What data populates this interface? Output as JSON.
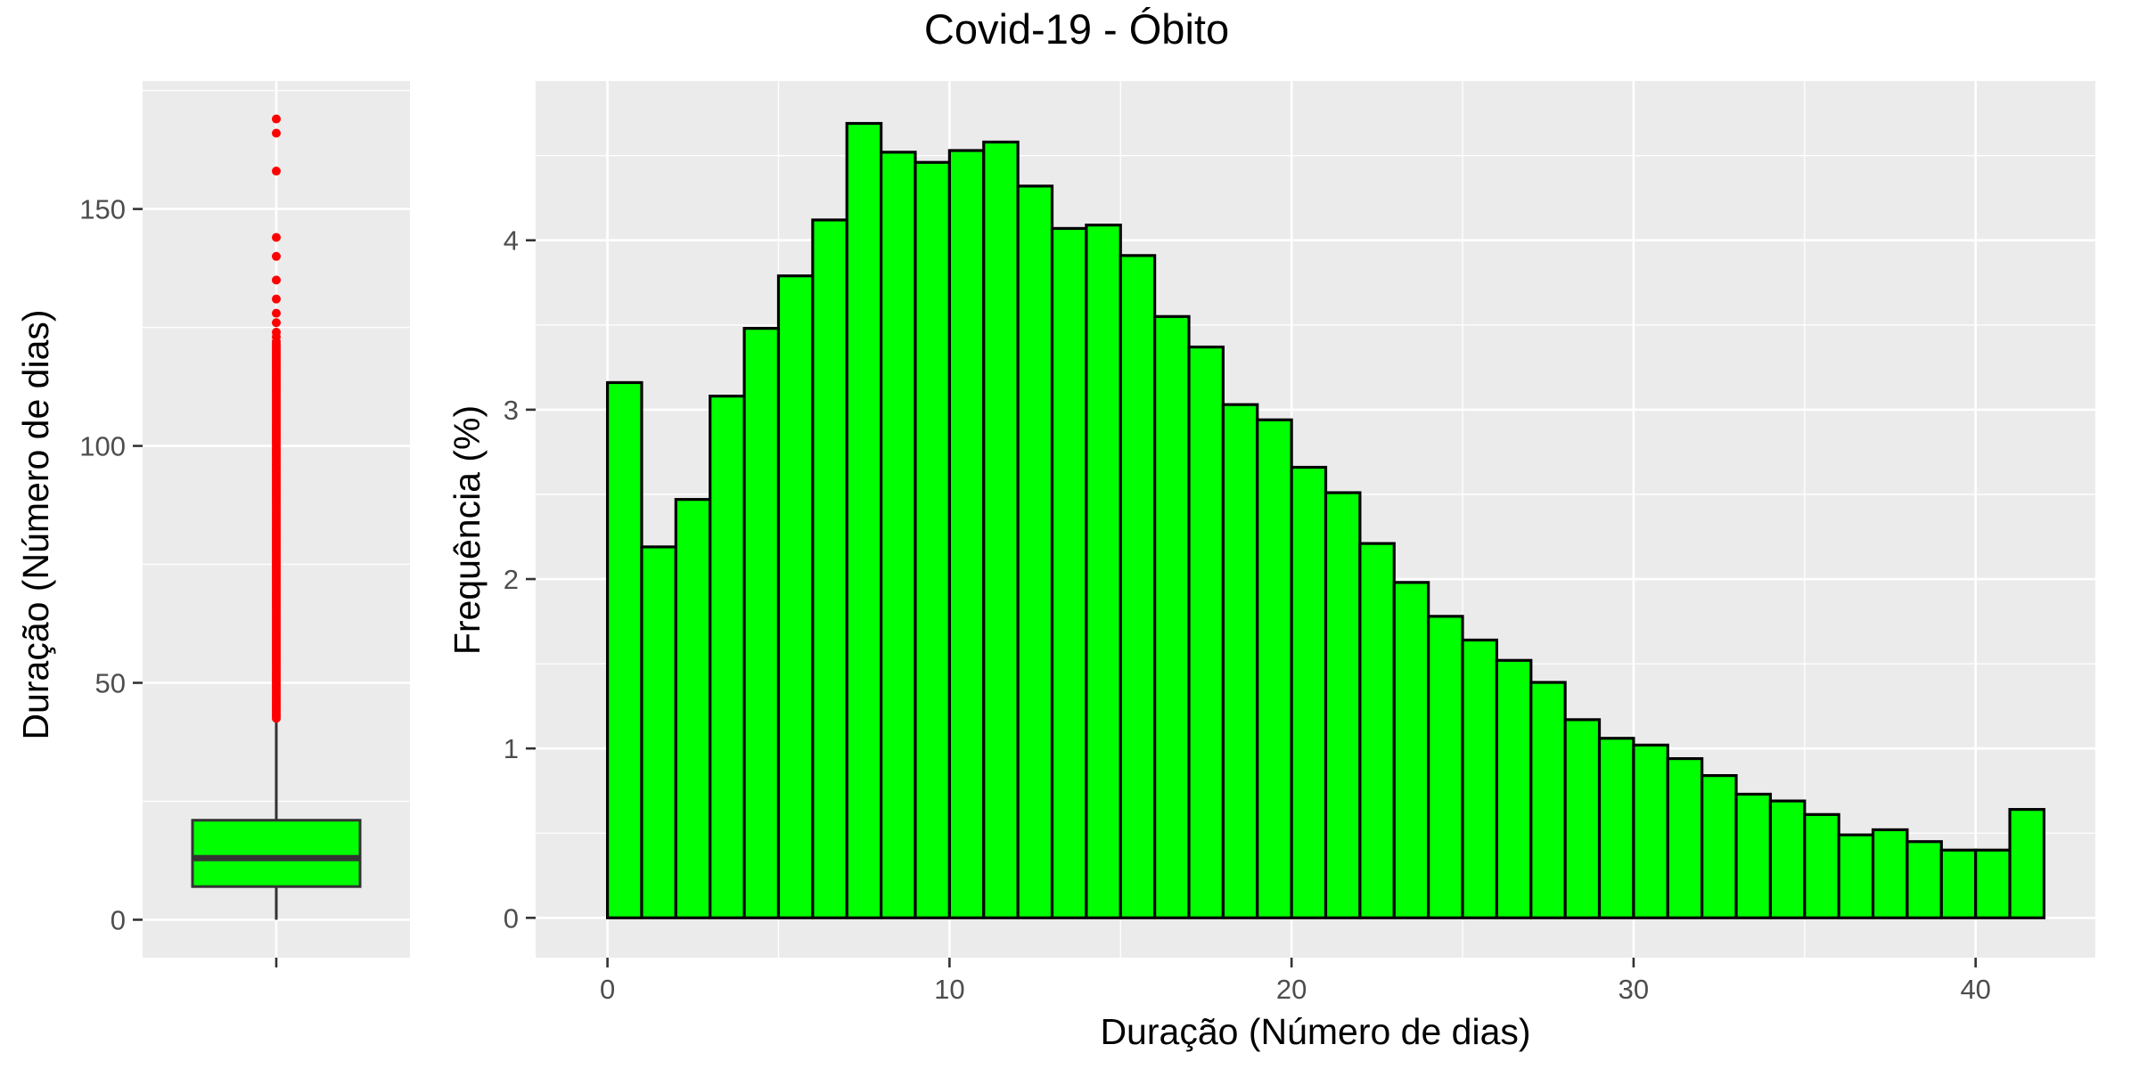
{
  "title": "Covid-19 - Óbito",
  "colors": {
    "fill": "#00FF00",
    "outlier": "#FF0000",
    "outline": "#000000",
    "panel": "#EBEBEB"
  },
  "chart_data": [
    {
      "type": "box",
      "ylabel": "Duração (Número de dias)",
      "ylim": [
        -8,
        177
      ],
      "yticks": [
        0,
        50,
        100,
        150
      ],
      "ytick_labels": [
        "0",
        "50",
        "100",
        "150"
      ],
      "box": {
        "q1": 7,
        "median": 13,
        "q3": 21,
        "whisker_low": 0,
        "whisker_high": 42
      },
      "outliers_dense_range": [
        42.5,
        122
      ],
      "outliers": [
        123,
        124,
        126,
        128,
        131,
        135,
        140,
        144,
        158,
        166,
        169
      ]
    },
    {
      "type": "bar",
      "xlabel": "Duração (Número de dias)",
      "ylabel": "Frequência (%)",
      "xlim": [
        -2.1,
        43.5
      ],
      "ylim": [
        -0.235,
        4.94
      ],
      "xticks": [
        0,
        10,
        20,
        30,
        40
      ],
      "xtick_labels": [
        "0",
        "10",
        "20",
        "30",
        "40"
      ],
      "yticks": [
        0,
        1,
        2,
        3,
        4
      ],
      "ytick_labels": [
        "0",
        "1",
        "2",
        "3",
        "4"
      ],
      "bins_start": 0,
      "bin_width": 1,
      "values": [
        3.16,
        2.19,
        2.47,
        3.08,
        3.48,
        3.79,
        4.12,
        4.69,
        4.52,
        4.46,
        4.53,
        4.58,
        4.32,
        4.07,
        4.09,
        3.91,
        3.55,
        3.37,
        3.03,
        2.94,
        2.66,
        2.51,
        2.21,
        1.98,
        1.78,
        1.64,
        1.52,
        1.39,
        1.17,
        1.06,
        1.02,
        0.94,
        0.84,
        0.73,
        0.69,
        0.61,
        0.49,
        0.52,
        0.45,
        0.4,
        0.4,
        0.64
      ]
    }
  ]
}
